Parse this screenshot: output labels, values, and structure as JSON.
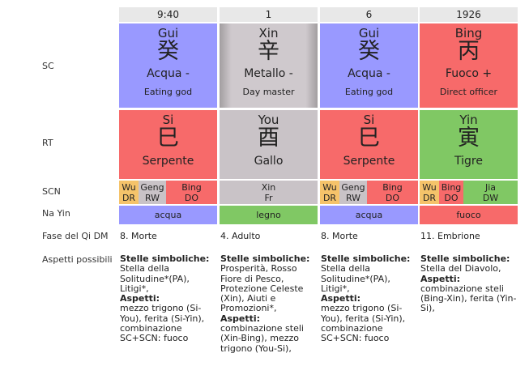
{
  "row_labels": {
    "sc": "SC",
    "rt": "RT",
    "scn": "SCN",
    "nayin": "Na Yin",
    "fase": "Fase del Qi DM",
    "aspetti": "Aspetti possibili"
  },
  "headers": [
    "9:40",
    "1",
    "6",
    "1926"
  ],
  "sc": [
    {
      "pinyin": "Gui",
      "hanzi": "癸",
      "element": "Acqua -",
      "role": "Eating god"
    },
    {
      "pinyin": "Xin",
      "hanzi": "辛",
      "element": "Metallo -",
      "role": "Day master"
    },
    {
      "pinyin": "Gui",
      "hanzi": "癸",
      "element": "Acqua -",
      "role": "Eating god"
    },
    {
      "pinyin": "Bing",
      "hanzi": "丙",
      "element": "Fuoco +",
      "role": "Direct officer"
    }
  ],
  "rt": [
    {
      "pinyin": "Si",
      "hanzi": "巳",
      "animal": "Serpente"
    },
    {
      "pinyin": "You",
      "hanzi": "酉",
      "animal": "Gallo"
    },
    {
      "pinyin": "Si",
      "hanzi": "巳",
      "animal": "Serpente"
    },
    {
      "pinyin": "Yin",
      "hanzi": "寅",
      "animal": "Tigre"
    }
  ],
  "scn": [
    [
      {
        "a": "Wu",
        "b": "DR"
      },
      {
        "a": "Geng",
        "b": "RW"
      },
      {
        "a": "Bing",
        "b": "DO"
      }
    ],
    [
      {
        "a": "Xin",
        "b": "Fr"
      }
    ],
    [
      {
        "a": "Wu",
        "b": "DR"
      },
      {
        "a": "Geng",
        "b": "RW"
      },
      {
        "a": "Bing",
        "b": "DO"
      }
    ],
    [
      {
        "a": "Wu",
        "b": "DR"
      },
      {
        "a": "Bing",
        "b": "DO"
      },
      {
        "a": "Jia",
        "b": "DW"
      }
    ]
  ],
  "nayin": [
    "acqua",
    "legno",
    "acqua",
    "fuoco"
  ],
  "fase": [
    "8. Morte",
    "4. Adulto",
    "8. Morte",
    "11. Embrione"
  ],
  "aspetti": [
    {
      "stelle_title": "Stelle simboliche:",
      "stelle": "Stella della Solitudine*(PA), Litigi*,",
      "aspetti_title": "Aspetti:",
      "aspetti": "mezzo trigono (Si-You), ferita (Si-Yin), combinazione SC+SCN: fuoco"
    },
    {
      "stelle_title": "Stelle simboliche:",
      "stelle": "Prosperità, Rosso Fiore di Pesco, Protezione Celeste (Xin), Aiuti e Promozioni*,",
      "aspetti_title": "Aspetti:",
      "aspetti": "combinazione steli (Xin-Bing), mezzo trigono (You-Si),"
    },
    {
      "stelle_title": "Stelle simboliche:",
      "stelle": "Stella della Solitudine*(PA), Litigi*,",
      "aspetti_title": "Aspetti:",
      "aspetti": "mezzo trigono (Si-You), ferita (Si-Yin), combinazione SC+SCN: fuoco"
    },
    {
      "stelle_title": "Stelle simboliche:",
      "stelle": "Stella del Diavolo,",
      "aspetti_title": "Aspetti:",
      "aspetti": "combinazione steli (Bing-Xin), ferita (Yin-Si),"
    }
  ],
  "colors": {
    "water": "#9999ff",
    "fire": "#f76a6a",
    "wood": "#80c864",
    "metal": "#c9c3c7",
    "earth": "#f5c36a"
  }
}
